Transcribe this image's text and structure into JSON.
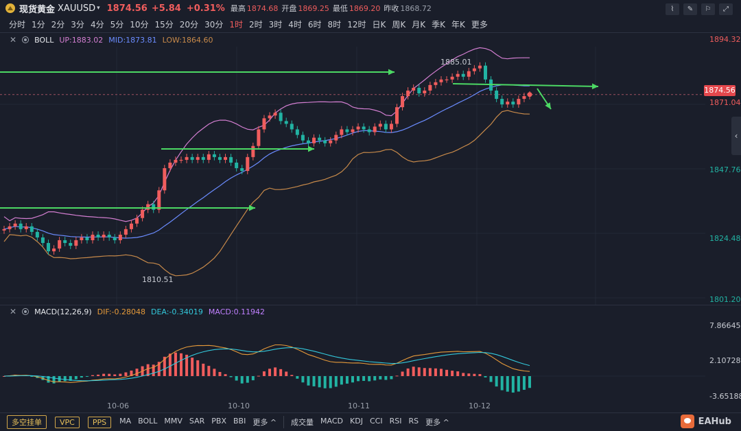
{
  "symbol": {
    "name": "现货黄金",
    "code": "XAUUSD",
    "price": "1874.56",
    "change": "+5.84",
    "change_pct": "+0.31%"
  },
  "stats": [
    {
      "k": "最高",
      "v": "1874.68",
      "c": "red"
    },
    {
      "k": "开盘",
      "v": "1869.25",
      "c": "red"
    },
    {
      "k": "最低",
      "v": "1869.20",
      "c": "red"
    },
    {
      "k": "昨收",
      "v": "1868.72",
      "c": "plain"
    }
  ],
  "tool_icons": [
    "chart-type-icon",
    "draw-pen-icon",
    "indicator-icon",
    "fullscreen-icon"
  ],
  "periods": [
    "分时",
    "1分",
    "2分",
    "3分",
    "4分",
    "5分",
    "10分",
    "15分",
    "20分",
    "30分",
    "1时",
    "2时",
    "3时",
    "4时",
    "6时",
    "8时",
    "12时",
    "日K",
    "周K",
    "月K",
    "季K",
    "年K",
    "更多"
  ],
  "active_period": "1时",
  "boll": {
    "name": "BOLL",
    "up": "UP:1883.02",
    "mid": "MID:1873.81",
    "low": "LOW:1864.60"
  },
  "macd": {
    "name": "MACD(12,26,9)",
    "dif": "DIF:-0.28048",
    "dea": "DEA:-0.34019",
    "macd": "MACD:0.11942"
  },
  "price_axis": [
    "1894.32",
    "1871.04",
    "1847.76",
    "1824.48",
    "1801.20"
  ],
  "current_tag": "1874.56",
  "macd_axis": [
    "7.86645",
    "2.10728",
    "-3.65188"
  ],
  "high_label": "1885.01",
  "low_label": "1810.51",
  "x_labels": [
    "10-06",
    "10-10",
    "10-11",
    "10-12"
  ],
  "bottom": {
    "pills": [
      "多空挂单",
      "VPC",
      "PPS"
    ],
    "main_ind": [
      "MA",
      "BOLL",
      "MMV",
      "SAR",
      "PBX",
      "BBI",
      "更多 ^"
    ],
    "sub_ind": [
      "成交量",
      "MACD",
      "KDJ",
      "CCI",
      "RSI",
      "RS",
      "更多 ^"
    ]
  },
  "brand": "EAHub",
  "colors": {
    "up": "#f05d5d",
    "down": "#22b3a3",
    "bg": "#1a1e2a",
    "boll_up": "#d47fd2",
    "boll_mid": "#6b8cff",
    "boll_low": "#c88a4a",
    "arrow": "#4cd964"
  },
  "chart_data": [
    {
      "type": "candlestick",
      "title": "XAUUSD 1时",
      "indicator": "BOLL",
      "ylim": [
        1801.2,
        1894.32
      ],
      "y_ticks": [
        1894.32,
        1871.04,
        1847.76,
        1824.48,
        1801.2
      ],
      "x_ticks": [
        "10-06",
        "10-10",
        "10-11",
        "10-12"
      ],
      "annotations": [
        {
          "text": "1885.01",
          "kind": "high"
        },
        {
          "text": "1810.51",
          "kind": "low"
        }
      ],
      "closes": [
        1826,
        1827,
        1828,
        1826,
        1827,
        1825,
        1823,
        1821,
        1818,
        1819,
        1822,
        1821,
        1820,
        1822,
        1823,
        1822,
        1824,
        1823,
        1824,
        1823,
        1822,
        1824,
        1826,
        1828,
        1830,
        1833,
        1835,
        1833,
        1840,
        1848,
        1850,
        1851,
        1851,
        1852,
        1851,
        1852,
        1851,
        1853,
        1852,
        1851,
        1852,
        1850,
        1848,
        1847,
        1852,
        1856,
        1862,
        1866,
        1867,
        1868,
        1865,
        1864,
        1862,
        1860,
        1858,
        1857,
        1859,
        1858,
        1857,
        1858,
        1860,
        1862,
        1861,
        1862,
        1863,
        1862,
        1861,
        1863,
        1864,
        1862,
        1864,
        1870,
        1874,
        1876,
        1877,
        1875,
        1876,
        1878,
        1879,
        1880,
        1880,
        1881,
        1882,
        1881,
        1883,
        1884,
        1885,
        1880,
        1876,
        1873,
        1871,
        1872,
        1871,
        1873,
        1874,
        1874.56
      ]
    },
    {
      "type": "bar",
      "title": "MACD(12,26,9)",
      "series": [
        {
          "name": "DIF",
          "value": -0.28048
        },
        {
          "name": "DEA",
          "value": -0.34019
        },
        {
          "name": "MACD",
          "value": 0.11942
        }
      ],
      "ylim": [
        -3.65188,
        7.86645
      ]
    }
  ]
}
